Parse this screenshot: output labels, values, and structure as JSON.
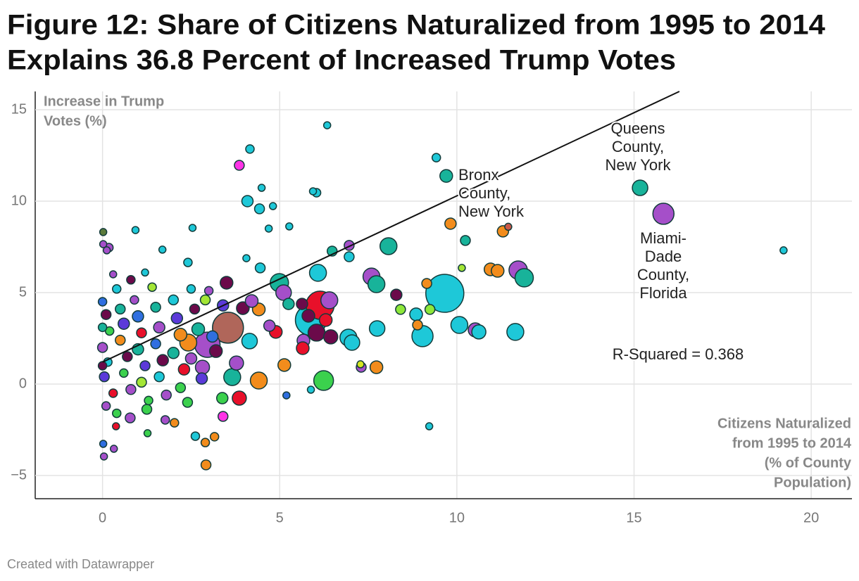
{
  "chart_data": {
    "type": "scatter",
    "title": [
      "Figure 12: Share of Citizens Naturalized from 1995 to 2014",
      "Explains 36.8 Percent of Increased Trump Votes"
    ],
    "y_label": [
      "Increase in Trump",
      "Votes (%)"
    ],
    "x_label": [
      "Citizens Naturalized",
      "from 1995 to 2014",
      "(% of County",
      "Population)"
    ],
    "footer": "Created with Datawrapper",
    "xlim": [
      -1.9,
      21.15
    ],
    "ylim": [
      -6.27,
      16
    ],
    "xticks": [
      0,
      5,
      10,
      15,
      20
    ],
    "yticks": [
      {
        "value": -5,
        "label": "−5"
      },
      0,
      5,
      10,
      15
    ],
    "grid": true,
    "annotations": [
      {
        "lines": [
          "Bronx",
          "County,",
          "New York"
        ]
      },
      {
        "lines": [
          "Queens",
          "County,",
          "New York"
        ]
      },
      {
        "lines": [
          "Miami-",
          "Dade",
          "County,",
          "Florida"
        ]
      },
      {
        "lines": [
          "R-Squared = 0.368"
        ]
      }
    ],
    "trend_line": {
      "x": [
        0,
        16.28
      ],
      "values": [
        1.2,
        16
      ]
    },
    "x": [
      6.34,
      4.16,
      3.86,
      9.42,
      9.7,
      15.17,
      15.83,
      19.22,
      9.82,
      11.3,
      11.45,
      9.66,
      11.73,
      11.9,
      10.95,
      11.15,
      11.65,
      9.03,
      10.52,
      10.07,
      10.62,
      8.89,
      8.85,
      9.15,
      10.24,
      10.14,
      8.07,
      7.59,
      7.73,
      7.75,
      8.29,
      8.41,
      9.24,
      9.22,
      7.73,
      7.3,
      6.24,
      5.88,
      6.14,
      6.4,
      6.08,
      6.04,
      6.94,
      7.04,
      6.96,
      6.96,
      6.48,
      6.04,
      5.94,
      4.49,
      4.09,
      4.43,
      4.81,
      5.27,
      4.69,
      4.06,
      4.45,
      4.99,
      5.11,
      4.41,
      5.13,
      4.41,
      3.78,
      3.66,
      3.86,
      3.38,
      3.4,
      2.92,
      2.62,
      2.9,
      3.16,
      5.19,
      5.88,
      7.28,
      3.54,
      2.96,
      2.42,
      2.82,
      3.5,
      3.96,
      4.21,
      5.25,
      5.63,
      5.81,
      5.67,
      6.3,
      6.44,
      5.65,
      4.89,
      4.71,
      4.15,
      2.54,
      1.69,
      0.93,
      2.41,
      0.12,
      0.02,
      0.02,
      0.18,
      0.04,
      0.32,
      0.02,
      0.38,
      1.25,
      2.03,
      1.77,
      0.78,
      1.27,
      0.0,
      0.1,
      0.2,
      0.0,
      0.15,
      0.05,
      0.3,
      0.1,
      0.4,
      0.5,
      0.6,
      0.5,
      0.7,
      0.6,
      0.8,
      0.9,
      1.0,
      1.1,
      1.0,
      1.2,
      1.1,
      1.3,
      1.4,
      1.5,
      1.6,
      1.5,
      1.7,
      1.6,
      1.8,
      2.0,
      2.1,
      2.2,
      2.0,
      2.3,
      2.2,
      2.6,
      2.7,
      2.5,
      2.8,
      2.9,
      3.1,
      3.2,
      0.3,
      1.2,
      0.8,
      2.5,
      3.0,
      3.4,
      0.0,
      0.0,
      0.4,
      2.4
    ],
    "values": [
      14.15,
      12.85,
      11.96,
      12.38,
      11.38,
      10.73,
      9.31,
      7.31,
      8.77,
      8.35,
      8.6,
      4.96,
      6.23,
      5.81,
      6.27,
      6.19,
      2.85,
      2.62,
      2.96,
      3.23,
      2.85,
      3.23,
      3.81,
      5.5,
      7.85,
      6.35,
      7.54,
      5.88,
      5.46,
      3.04,
      4.88,
      4.08,
      4.08,
      -2.31,
      0.92,
      0.92,
      0.19,
      3.5,
      4.31,
      4.58,
      6.08,
      2.81,
      2.54,
      2.27,
      7.58,
      6.96,
      7.27,
      10.46,
      10.54,
      10.73,
      10.0,
      9.58,
      9.73,
      8.62,
      8.5,
      6.88,
      6.35,
      5.54,
      5.0,
      4.08,
      1.04,
      0.19,
      1.15,
      0.38,
      -0.77,
      -0.77,
      -1.77,
      -4.42,
      -2.85,
      -3.2,
      -2.88,
      -0.62,
      -0.31,
      1.08,
      3.08,
      2.15,
      2.27,
      0.92,
      5.54,
      4.15,
      4.54,
      4.38,
      4.38,
      3.73,
      2.38,
      3.5,
      2.58,
      1.96,
      2.85,
      3.19,
      2.35,
      8.54,
      7.35,
      8.42,
      6.65,
      7.31,
      8.31,
      7.65,
      7.46,
      -3.96,
      -3.54,
      -3.27,
      -2.31,
      -1.38,
      -2.12,
      -1.96,
      -1.85,
      -2.69,
      4.5,
      3.8,
      2.9,
      2.0,
      1.2,
      0.4,
      -0.5,
      -1.2,
      5.2,
      4.1,
      3.3,
      2.4,
      1.5,
      0.6,
      -0.3,
      4.6,
      3.7,
      2.8,
      1.9,
      1.0,
      0.1,
      -0.9,
      5.3,
      4.2,
      3.1,
      2.2,
      1.3,
      0.4,
      -0.6,
      4.6,
      3.6,
      2.7,
      1.7,
      0.8,
      -0.2,
      4.1,
      3.0,
      1.4,
      0.3,
      4.6,
      2.6,
      1.8,
      6.0,
      6.1,
      5.7,
      5.2,
      5.1,
      4.3,
      1.0,
      3.1,
      -1.6,
      -1.0
    ],
    "sizes": [
      5,
      6,
      7,
      6,
      9,
      11,
      15,
      5,
      8,
      8,
      5,
      27,
      13,
      13,
      9,
      9,
      12,
      15,
      10,
      12,
      10,
      7,
      9,
      7,
      7,
      5,
      12,
      12,
      12,
      11,
      8,
      7,
      7,
      5,
      9,
      7,
      14,
      22,
      20,
      12,
      12,
      12,
      12,
      11,
      7,
      7,
      7,
      6,
      5,
      5,
      8,
      7,
      5,
      5,
      5,
      5,
      7,
      13,
      11,
      9,
      9,
      12,
      10,
      12,
      10,
      8,
      7,
      7,
      6,
      6,
      6,
      5,
      5,
      5,
      22,
      18,
      12,
      10,
      9,
      9,
      9,
      8,
      8,
      9,
      9,
      9,
      10,
      9,
      9,
      8,
      11,
      5,
      5,
      5,
      6,
      5,
      5,
      5,
      6,
      5,
      5,
      5,
      5,
      7,
      6,
      6,
      7,
      5,
      6,
      7,
      6,
      7,
      6,
      7,
      6,
      6,
      6,
      7,
      8,
      7,
      7,
      6,
      7,
      6,
      8,
      7,
      8,
      7,
      7,
      6,
      6,
      7,
      8,
      7,
      8,
      7,
      7,
      7,
      8,
      9,
      8,
      8,
      7,
      7,
      9,
      8,
      8,
      7,
      8,
      9,
      5,
      5,
      6,
      6,
      6,
      8,
      6,
      6,
      6,
      7
    ],
    "colors": [
      "#1ec8d8",
      "#1ec8d8",
      "#ff33e6",
      "#1ec8d8",
      "#18b39a",
      "#18b39a",
      "#a54fc9",
      "#1ec8d8",
      "#f28c1c",
      "#f28c1c",
      "#c9584a",
      "#1ec8d8",
      "#a54fc9",
      "#18b39a",
      "#f28c1c",
      "#f28c1c",
      "#1ec8d8",
      "#1ec8d8",
      "#a54fc9",
      "#1ec8d8",
      "#1ec8d8",
      "#f28c1c",
      "#1ec8d8",
      "#f28c1c",
      "#18b39a",
      "#a3e635",
      "#18b39a",
      "#a54fc9",
      "#18b39a",
      "#1ec8d8",
      "#6b0a4a",
      "#8ee83a",
      "#8ee83a",
      "#1ec8d8",
      "#f28c1c",
      "#a54fc9",
      "#3bd14d",
      "#1ec8d8",
      "#e8102a",
      "#a54fc9",
      "#1ec8d8",
      "#6b0a4a",
      "#1ec8d8",
      "#1ec8d8",
      "#a54fc9",
      "#1ec8d8",
      "#18b39a",
      "#1ec8d8",
      "#1ec8d8",
      "#1ec8d8",
      "#1ec8d8",
      "#1ec8d8",
      "#1ec8d8",
      "#1ec8d8",
      "#1ec8d8",
      "#1ec8d8",
      "#1ec8d8",
      "#18b39a",
      "#a54fc9",
      "#f28c1c",
      "#f28c1c",
      "#f28c1c",
      "#a54fc9",
      "#18b39a",
      "#e8102a",
      "#3bd14d",
      "#ff33e6",
      "#f28c1c",
      "#1ec8d8",
      "#f28c1c",
      "#f28c1c",
      "#2f6fe0",
      "#1ec8d8",
      "#d4e620",
      "#b0665a",
      "#a54fc9",
      "#f28c1c",
      "#a54fc9",
      "#6b0a4a",
      "#6b0a4a",
      "#a54fc9",
      "#18b39a",
      "#6b0a4a",
      "#6b0a4a",
      "#a54fc9",
      "#e8102a",
      "#6b0a4a",
      "#e8102a",
      "#e8102a",
      "#a54fc9",
      "#1ec8d8",
      "#1ec8d8",
      "#1ec8d8",
      "#1ec8d8",
      "#1ec8d8",
      "#a54fc9",
      "#5b7a3b",
      "#a54fc9",
      "#a54fc9",
      "#a54fc9",
      "#a54fc9",
      "#2f6fe0",
      "#e8102a",
      "#3bd14d",
      "#f28c1c",
      "#a54fc9",
      "#a54fc9",
      "#3bd14d",
      "#2f6fe0",
      "#6b0a4a",
      "#3bd14d",
      "#a54fc9",
      "#1ec8d8",
      "#5b3ad9",
      "#e8102a",
      "#a54fc9",
      "#1ec8d8",
      "#18b39a",
      "#5b3ad9",
      "#f28c1c",
      "#6b0a4a",
      "#3bd14d",
      "#a54fc9",
      "#a54fc9",
      "#2f6fe0",
      "#e8102a",
      "#18b39a",
      "#5b3ad9",
      "#a3e635",
      "#3bd14d",
      "#a3e635",
      "#18b39a",
      "#a54fc9",
      "#2f6fe0",
      "#6b0a4a",
      "#1ec8d8",
      "#a54fc9",
      "#1ec8d8",
      "#5b3ad9",
      "#f28c1c",
      "#18b39a",
      "#e8102a",
      "#3bd14d",
      "#6b0a4a",
      "#18b39a",
      "#a54fc9",
      "#5b3ad9",
      "#a3e635",
      "#2f6fe0",
      "#6b0a4a",
      "#a54fc9",
      "#1ec8d8",
      "#6b0a4a",
      "#1ec8d8",
      "#a54fc9",
      "#5b3ad9",
      "#6b0a4a",
      "#18b39a",
      "#3bd14d",
      "#3bd14d"
    ]
  }
}
